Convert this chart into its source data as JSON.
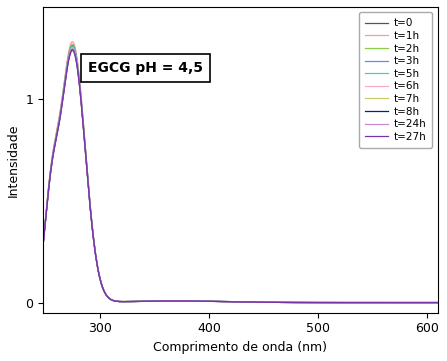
{
  "xlabel": "Comprimento de onda (nm)",
  "ylabel": "Intensidade",
  "annotation": "EGCG pH = 4,5",
  "xlim": [
    248,
    610
  ],
  "ylim": [
    -0.05,
    1.45
  ],
  "xticks": [
    300,
    400,
    500,
    600
  ],
  "yticks": [
    0,
    1
  ],
  "series": [
    {
      "label": "t=0",
      "color": "#555555",
      "lw": 0.9,
      "peak_scale": 1.0
    },
    {
      "label": "t=1h",
      "color": "#FF9999",
      "lw": 0.9,
      "peak_scale": 1.02
    },
    {
      "label": "t=2h",
      "color": "#88CC44",
      "lw": 0.9,
      "peak_scale": 1.01
    },
    {
      "label": "t=3h",
      "color": "#6688EE",
      "lw": 0.9,
      "peak_scale": 1.005
    },
    {
      "label": "t=5h",
      "color": "#44CCCC",
      "lw": 0.9,
      "peak_scale": 1.0
    },
    {
      "label": "t=6h",
      "color": "#FFAACC",
      "lw": 0.9,
      "peak_scale": 0.996
    },
    {
      "label": "t=7h",
      "color": "#CCCC66",
      "lw": 0.9,
      "peak_scale": 0.994
    },
    {
      "label": "t=8h",
      "color": "#1111AA",
      "lw": 0.9,
      "peak_scale": 0.99
    },
    {
      "label": "t=24h",
      "color": "#CC88CC",
      "lw": 0.9,
      "peak_scale": 0.988
    },
    {
      "label": "t=27h",
      "color": "#7733AA",
      "lw": 0.9,
      "peak_scale": 0.986
    }
  ],
  "background_color": "#ffffff",
  "axis_fontsize": 9,
  "legend_fontsize": 7.5,
  "annot_fontsize": 10
}
